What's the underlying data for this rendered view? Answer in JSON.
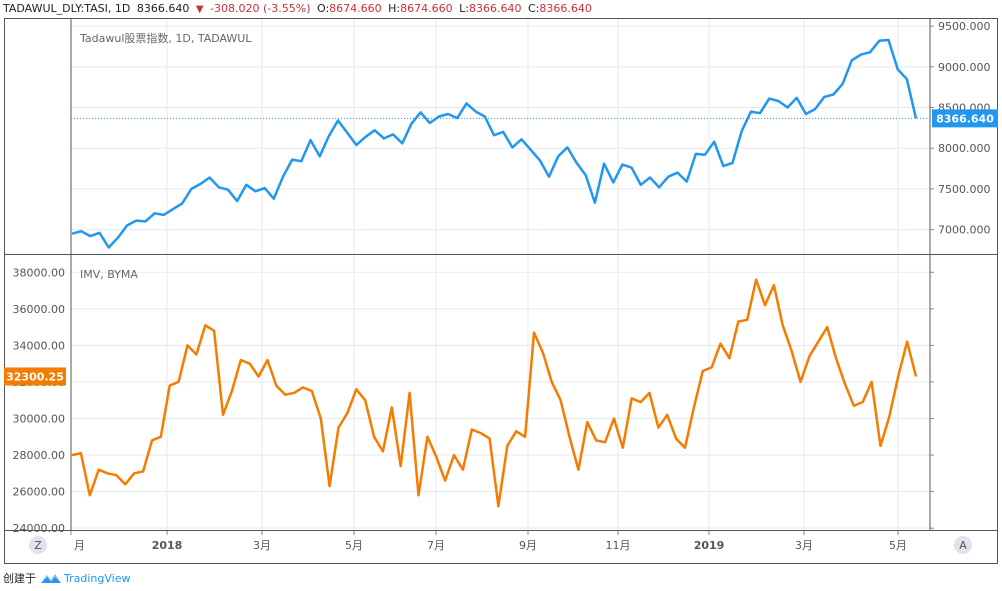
{
  "header": {
    "symbol": "TADAWUL_DLY:TASI, 1D",
    "price": "8366.640",
    "change": "-308.020 (-3.55%)",
    "o_label": "O:",
    "o_value": "8674.660",
    "h_label": "H:",
    "h_value": "8674.660",
    "l_label": "L:",
    "l_value": "8366.640",
    "c_label": "C:",
    "c_value": "8366.640"
  },
  "footer": {
    "created_with": "创建于",
    "brand": "TradingView"
  },
  "buttons": {
    "z": "Z",
    "a": "A"
  },
  "colors": {
    "upper_line": "#2196f3",
    "lower_line": "#f57c00",
    "grid": "#e6e9ef",
    "border": "#555555",
    "text": "#555555",
    "down": "#cc2f3c"
  },
  "chart_data": [
    {
      "type": "line",
      "title": "Tadawul股票指数, 1D, TADAWUL",
      "series": [
        {
          "values": [
            6950,
            6980,
            6920,
            6960,
            6780,
            6900,
            7050,
            7110,
            7100,
            7200,
            7180,
            7250,
            7320,
            7500,
            7560,
            7640,
            7520,
            7490,
            7350,
            7550,
            7470,
            7510,
            7380,
            7650,
            7860,
            7840,
            8100,
            7900,
            8150,
            8340,
            8190,
            8040,
            8140,
            8220,
            8120,
            8170,
            8060,
            8300,
            8440,
            8310,
            8390,
            8420,
            8370,
            8550,
            8450,
            8390,
            8160,
            8200,
            8010,
            8110,
            7980,
            7850,
            7650,
            7900,
            8010,
            7820,
            7670,
            7330,
            7810,
            7580,
            7800,
            7760,
            7550,
            7640,
            7520,
            7650,
            7700,
            7590,
            7930,
            7920,
            8080,
            7780,
            7820,
            8210,
            8450,
            8430,
            8610,
            8580,
            8500,
            8620,
            8420,
            8480,
            8630,
            8660,
            8790,
            9080,
            9150,
            9180,
            9320,
            9330,
            8970,
            8850,
            8366.64
          ]
        }
      ],
      "x_start": "2017-06-01",
      "x_end": "2019-05-22",
      "ylim": [
        6700,
        9600
      ],
      "yticks": [
        "9500.000",
        "9000.000",
        "8500.000",
        "8000.000",
        "7500.000",
        "7000.000"
      ],
      "last_value_label": "8366.640"
    },
    {
      "type": "line",
      "title": "IMV, BYMA",
      "series": [
        {
          "values": [
            28000,
            28100,
            25800,
            27200,
            27000,
            26900,
            26400,
            27000,
            27100,
            28800,
            29000,
            31800,
            32000,
            34000,
            33500,
            35100,
            34800,
            30200,
            31500,
            33200,
            33000,
            32300,
            33200,
            31800,
            31300,
            31400,
            31700,
            31500,
            30000,
            26300,
            29500,
            30300,
            31600,
            31000,
            29000,
            28200,
            30600,
            27400,
            31400,
            25800,
            29000,
            27900,
            26600,
            28000,
            27200,
            29400,
            29200,
            28900,
            25200,
            28500,
            29300,
            29000,
            34700,
            33600,
            32000,
            31000,
            29000,
            27200,
            29800,
            28800,
            28700,
            30000,
            28400,
            31100,
            30900,
            31400,
            29500,
            30200,
            28900,
            28400,
            30600,
            32600,
            32800,
            34100,
            33300,
            35300,
            35400,
            37600,
            36200,
            37300,
            35100,
            33700,
            32000,
            33400,
            34200,
            35000,
            33300,
            31900,
            30700,
            30900,
            32000,
            28500,
            30100,
            32300,
            34200,
            32300.25
          ]
        }
      ],
      "x_start": "2017-06-01",
      "x_end": "2019-05-22",
      "ylim": [
        23900,
        39000
      ],
      "yticks": [
        "38000.00",
        "36000.00",
        "34000.00",
        "32000.00",
        "30000.00",
        "28000.00",
        "26000.00",
        "24000.00"
      ],
      "last_value_label": "32300.25",
      "xaxis_labels": [
        "月",
        "2018",
        "3月",
        "5月",
        "7月",
        "9月",
        "11月",
        "2019",
        "3月",
        "5月"
      ]
    }
  ]
}
